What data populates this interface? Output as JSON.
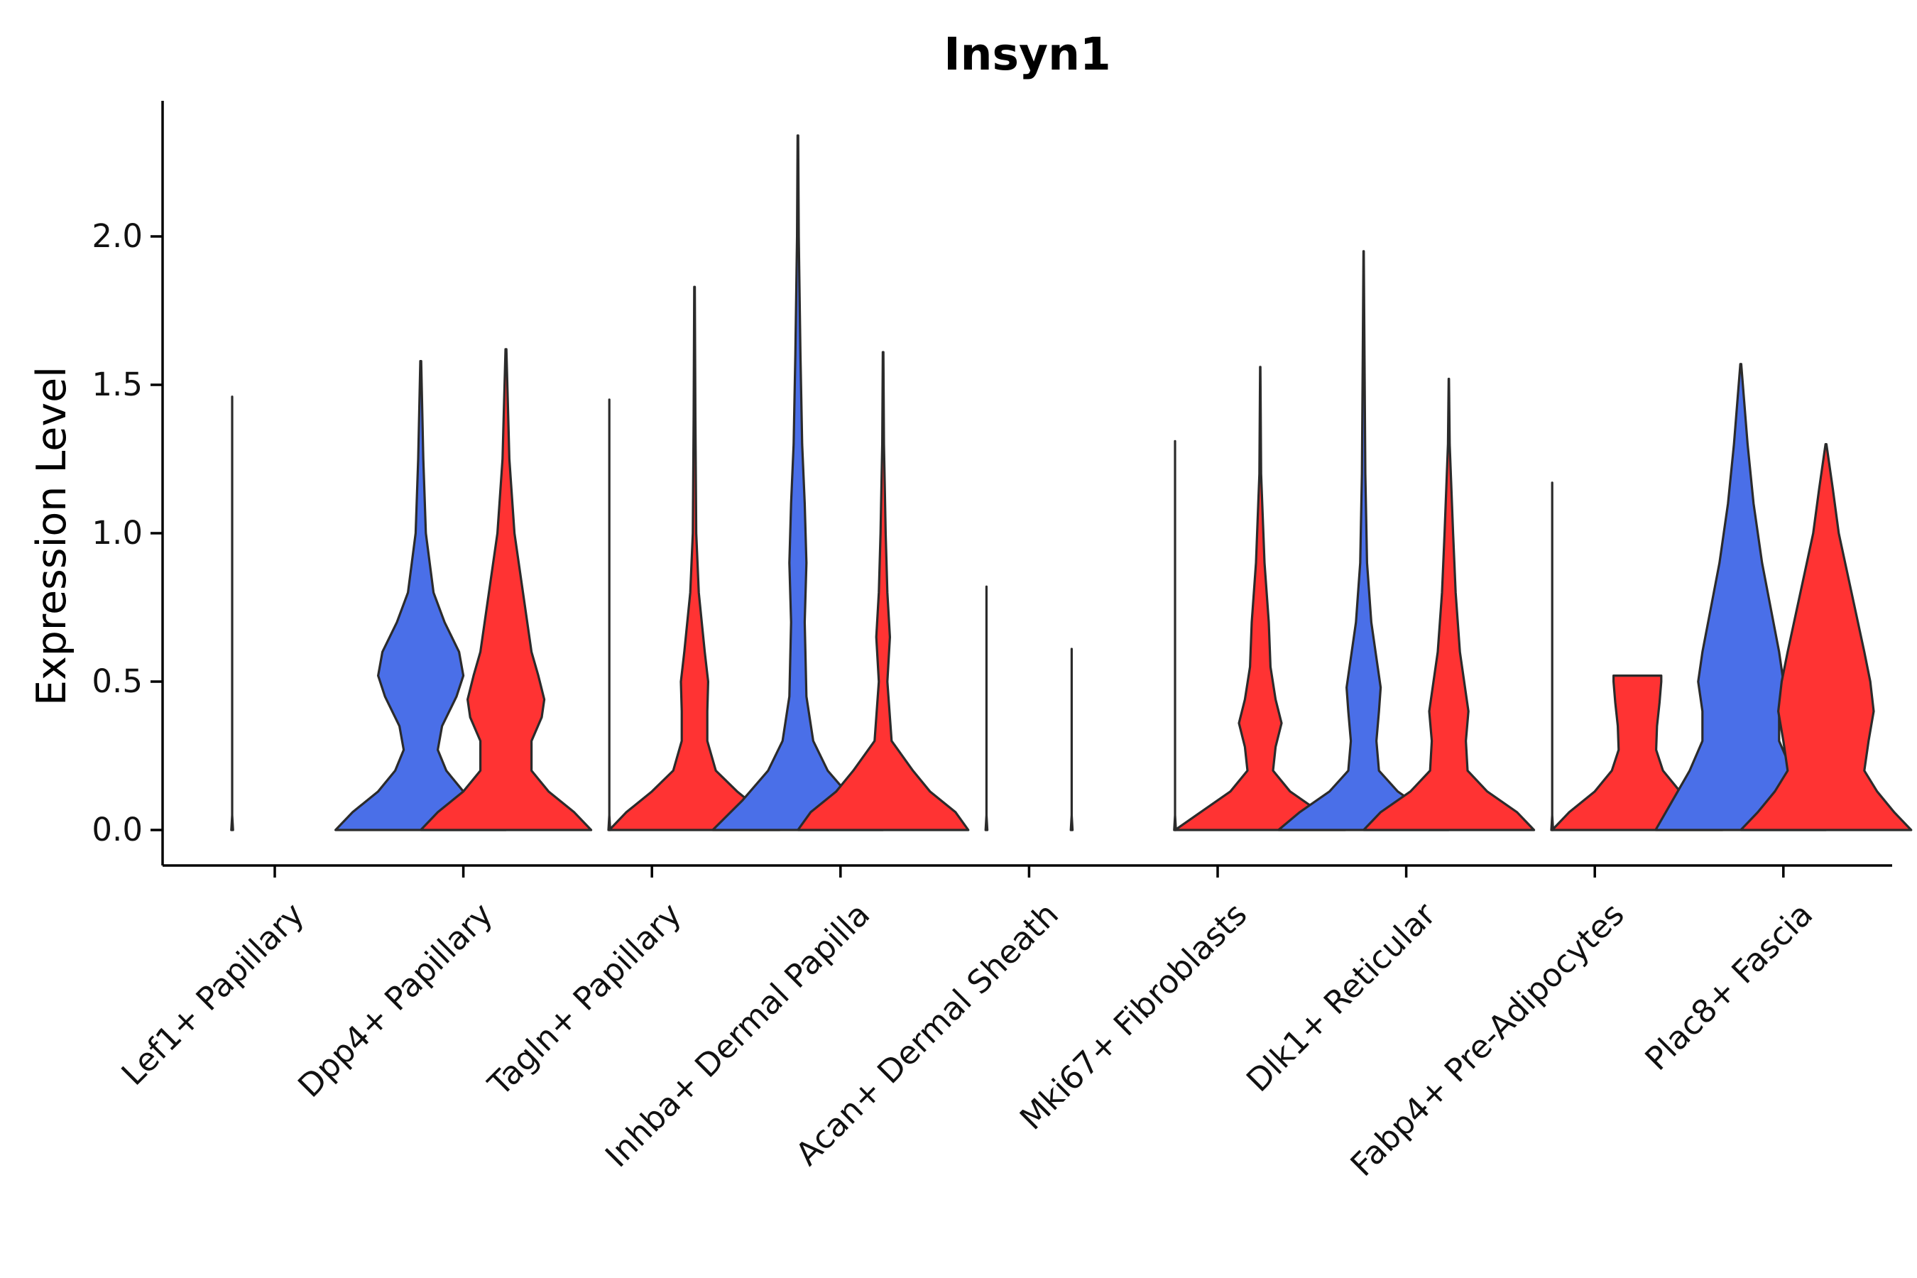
{
  "chart_data": {
    "type": "violin",
    "title": "Insyn1",
    "xlabel": "",
    "ylabel": "Expression Level",
    "ylim": [
      -0.12,
      2.45
    ],
    "yticks": [
      0.0,
      0.5,
      1.0,
      1.5,
      2.0
    ],
    "ytick_labels": [
      "0.0",
      "0.5",
      "1.0",
      "1.5",
      "2.0"
    ],
    "categories": [
      "Lef1+ Papillary",
      "Dpp4+ Papillary",
      "Tagln+ Papillary",
      "Inhba+ Dermal Papilla",
      "Acan+ Dermal Sheath",
      "Mki67+ Fibroblasts",
      "Dlk1+ Reticular",
      "Fabp4+ Pre-Adipocytes",
      "Plac8+ Fascia"
    ],
    "series_colors": {
      "blue": "#4A6FE8",
      "red": "#FF3333"
    },
    "violins": [
      {
        "category": 0,
        "side": "left",
        "color": "blue",
        "max": 1.46,
        "profile": [
          [
            0,
            0.01
          ],
          [
            0.05,
            0
          ],
          [
            1.46,
            0
          ]
        ]
      },
      {
        "category": 1,
        "side": "left",
        "color": "blue",
        "max": 1.58,
        "profile": [
          [
            0,
            1
          ],
          [
            0.06,
            0.8
          ],
          [
            0.13,
            0.5
          ],
          [
            0.2,
            0.3
          ],
          [
            0.27,
            0.2
          ],
          [
            0.35,
            0.25
          ],
          [
            0.45,
            0.42
          ],
          [
            0.52,
            0.5
          ],
          [
            0.6,
            0.45
          ],
          [
            0.7,
            0.28
          ],
          [
            0.8,
            0.15
          ],
          [
            1.0,
            0.06
          ],
          [
            1.25,
            0.03
          ],
          [
            1.58,
            0.005
          ]
        ]
      },
      {
        "category": 1,
        "side": "right",
        "color": "red",
        "max": 1.62,
        "profile": [
          [
            0,
            1
          ],
          [
            0.06,
            0.8
          ],
          [
            0.13,
            0.5
          ],
          [
            0.2,
            0.3
          ],
          [
            0.3,
            0.3
          ],
          [
            0.38,
            0.42
          ],
          [
            0.44,
            0.45
          ],
          [
            0.52,
            0.38
          ],
          [
            0.6,
            0.3
          ],
          [
            0.8,
            0.2
          ],
          [
            1.0,
            0.1
          ],
          [
            1.25,
            0.04
          ],
          [
            1.62,
            0.005
          ]
        ]
      },
      {
        "category": 2,
        "side": "left",
        "color": "blue",
        "max": 1.45,
        "profile": [
          [
            0,
            0.01
          ],
          [
            0.05,
            0
          ],
          [
            1.45,
            0
          ]
        ]
      },
      {
        "category": 2,
        "side": "right",
        "color": "red",
        "max": 1.83,
        "profile": [
          [
            0,
            1
          ],
          [
            0.06,
            0.8
          ],
          [
            0.13,
            0.5
          ],
          [
            0.2,
            0.25
          ],
          [
            0.3,
            0.15
          ],
          [
            0.4,
            0.15
          ],
          [
            0.5,
            0.16
          ],
          [
            0.6,
            0.12
          ],
          [
            0.8,
            0.05
          ],
          [
            1.0,
            0.02
          ],
          [
            1.4,
            0.01
          ],
          [
            1.83,
            0.003
          ]
        ]
      },
      {
        "category": 3,
        "side": "left",
        "color": "blue",
        "max": 2.34,
        "profile": [
          [
            0,
            1
          ],
          [
            0.1,
            0.65
          ],
          [
            0.2,
            0.35
          ],
          [
            0.3,
            0.18
          ],
          [
            0.45,
            0.1
          ],
          [
            0.7,
            0.08
          ],
          [
            0.9,
            0.1
          ],
          [
            1.1,
            0.08
          ],
          [
            1.3,
            0.05
          ],
          [
            1.6,
            0.03
          ],
          [
            2.0,
            0.01
          ],
          [
            2.34,
            0.003
          ]
        ]
      },
      {
        "category": 3,
        "side": "right",
        "color": "red",
        "max": 1.61,
        "profile": [
          [
            0,
            1
          ],
          [
            0.06,
            0.85
          ],
          [
            0.13,
            0.55
          ],
          [
            0.2,
            0.35
          ],
          [
            0.3,
            0.1
          ],
          [
            0.5,
            0.05
          ],
          [
            0.65,
            0.08
          ],
          [
            0.8,
            0.05
          ],
          [
            1.0,
            0.03
          ],
          [
            1.3,
            0.01
          ],
          [
            1.61,
            0.003
          ]
        ]
      },
      {
        "category": 4,
        "side": "left",
        "color": "blue",
        "max": 0.82,
        "profile": [
          [
            0,
            0.01
          ],
          [
            0.05,
            0
          ],
          [
            0.82,
            0
          ]
        ]
      },
      {
        "category": 4,
        "side": "right",
        "color": "red",
        "max": 0.61,
        "profile": [
          [
            0,
            0.01
          ],
          [
            0.05,
            0
          ],
          [
            0.61,
            0
          ]
        ]
      },
      {
        "category": 5,
        "side": "left",
        "color": "blue",
        "max": 1.31,
        "profile": [
          [
            0,
            0.01
          ],
          [
            0.05,
            0
          ],
          [
            1.31,
            0
          ]
        ]
      },
      {
        "category": 5,
        "side": "right",
        "color": "red",
        "max": 1.56,
        "profile": [
          [
            0,
            1
          ],
          [
            0.06,
            0.7
          ],
          [
            0.13,
            0.35
          ],
          [
            0.2,
            0.15
          ],
          [
            0.28,
            0.18
          ],
          [
            0.36,
            0.25
          ],
          [
            0.44,
            0.18
          ],
          [
            0.55,
            0.12
          ],
          [
            0.7,
            0.1
          ],
          [
            0.9,
            0.05
          ],
          [
            1.2,
            0.01
          ],
          [
            1.56,
            0.002
          ]
        ]
      },
      {
        "category": 6,
        "side": "left",
        "color": "blue",
        "max": 1.95,
        "profile": [
          [
            0,
            1
          ],
          [
            0.06,
            0.75
          ],
          [
            0.13,
            0.4
          ],
          [
            0.2,
            0.18
          ],
          [
            0.3,
            0.15
          ],
          [
            0.4,
            0.18
          ],
          [
            0.48,
            0.2
          ],
          [
            0.58,
            0.15
          ],
          [
            0.7,
            0.09
          ],
          [
            0.9,
            0.04
          ],
          [
            1.2,
            0.02
          ],
          [
            1.6,
            0.01
          ],
          [
            1.95,
            0.002
          ]
        ]
      },
      {
        "category": 6,
        "side": "right",
        "color": "red",
        "max": 1.52,
        "profile": [
          [
            0,
            1
          ],
          [
            0.06,
            0.8
          ],
          [
            0.13,
            0.45
          ],
          [
            0.2,
            0.22
          ],
          [
            0.3,
            0.2
          ],
          [
            0.4,
            0.23
          ],
          [
            0.5,
            0.18
          ],
          [
            0.6,
            0.13
          ],
          [
            0.8,
            0.08
          ],
          [
            1.0,
            0.05
          ],
          [
            1.3,
            0.01
          ],
          [
            1.52,
            0.002
          ]
        ]
      },
      {
        "category": 7,
        "side": "left",
        "color": "blue",
        "max": 1.17,
        "profile": [
          [
            0,
            0.01
          ],
          [
            0.05,
            0
          ],
          [
            1.17,
            0
          ]
        ]
      },
      {
        "category": 7,
        "side": "right",
        "color": "red",
        "max": 0.52,
        "profile": [
          [
            0,
            1
          ],
          [
            0.06,
            0.8
          ],
          [
            0.13,
            0.5
          ],
          [
            0.2,
            0.3
          ],
          [
            0.27,
            0.22
          ],
          [
            0.35,
            0.23
          ],
          [
            0.43,
            0.26
          ],
          [
            0.5,
            0.28
          ],
          [
            0.52,
            0.28
          ]
        ]
      },
      {
        "category": 8,
        "side": "left",
        "color": "blue",
        "max": 1.57,
        "profile": [
          [
            0,
            1
          ],
          [
            0.1,
            0.8
          ],
          [
            0.2,
            0.6
          ],
          [
            0.3,
            0.45
          ],
          [
            0.4,
            0.45
          ],
          [
            0.5,
            0.5
          ],
          [
            0.6,
            0.45
          ],
          [
            0.75,
            0.35
          ],
          [
            0.9,
            0.25
          ],
          [
            1.1,
            0.15
          ],
          [
            1.3,
            0.08
          ],
          [
            1.57,
            0.005
          ]
        ]
      },
      {
        "category": 8,
        "side": "right",
        "color": "red",
        "max": 1.3,
        "profile": [
          [
            0,
            1
          ],
          [
            0.06,
            0.8
          ],
          [
            0.13,
            0.6
          ],
          [
            0.2,
            0.45
          ],
          [
            0.3,
            0.5
          ],
          [
            0.4,
            0.56
          ],
          [
            0.5,
            0.52
          ],
          [
            0.6,
            0.45
          ],
          [
            0.8,
            0.3
          ],
          [
            1.0,
            0.15
          ],
          [
            1.15,
            0.08
          ],
          [
            1.3,
            0.005
          ]
        ]
      }
    ]
  }
}
